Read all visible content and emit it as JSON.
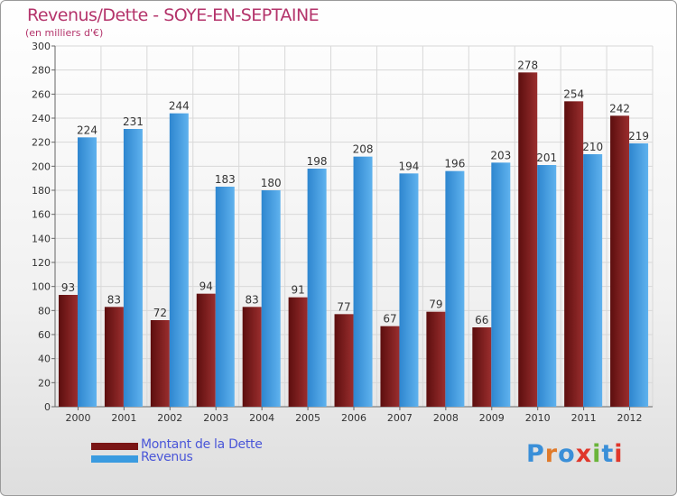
{
  "header": {
    "title": "Revenus/Dette - SOYE-EN-SEPTAINE",
    "subtitle": "(en milliers d'€)"
  },
  "legend": [
    {
      "label": "Montant de la Dette",
      "color": "#7a1515"
    },
    {
      "label": "Revenus",
      "color": "#3a9be0"
    }
  ],
  "logo": {
    "text": "Proxiti",
    "letter_colors": [
      "#3a8fd8",
      "#e07a2a",
      "#3a8fd8",
      "#e0362a",
      "#6ab43a",
      "#3a8fd8",
      "#e0362a"
    ]
  },
  "colors": {
    "debt_dark": "#5c0e0e",
    "debt_light": "#9a2e2e",
    "revenue_dark": "#2e86cf",
    "revenue_light": "#5fb2ee",
    "grid": "#d8d8d8",
    "axis": "#666666",
    "label": "#333333"
  },
  "chart_data": {
    "type": "bar",
    "categories": [
      "2000",
      "2001",
      "2002",
      "2003",
      "2004",
      "2005",
      "2006",
      "2007",
      "2008",
      "2009",
      "2010",
      "2011",
      "2012"
    ],
    "series": [
      {
        "name": "Montant de la Dette",
        "values": [
          93,
          83,
          72,
          94,
          83,
          91,
          77,
          67,
          79,
          66,
          278,
          254,
          242
        ]
      },
      {
        "name": "Revenus",
        "values": [
          224,
          231,
          244,
          183,
          180,
          198,
          208,
          194,
          196,
          203,
          201,
          210,
          219
        ]
      }
    ],
    "ylim": [
      0,
      300
    ],
    "yticks": [
      0,
      20,
      40,
      60,
      80,
      100,
      120,
      140,
      160,
      180,
      200,
      220,
      240,
      260,
      280,
      300
    ],
    "grid": true,
    "legend_position": "bottom-left"
  }
}
